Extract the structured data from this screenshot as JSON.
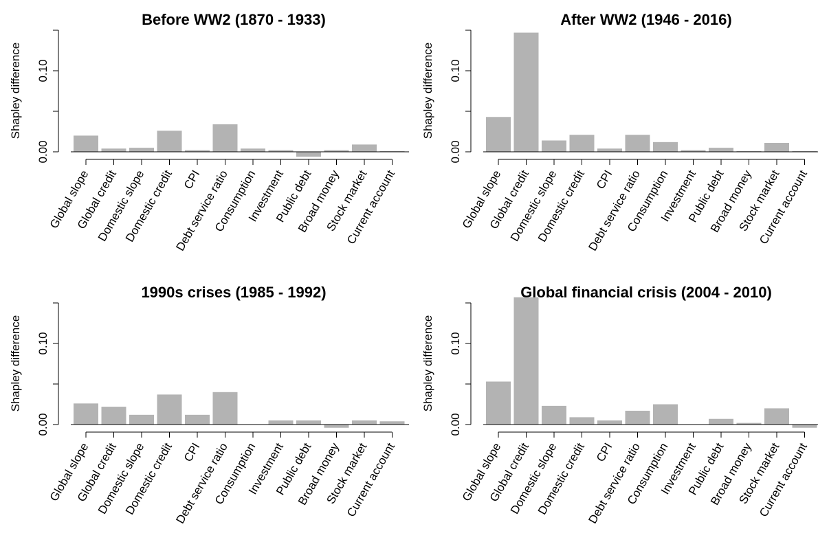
{
  "chart_data": [
    {
      "type": "bar",
      "title": "Before WW2 (1870 - 1933)",
      "y_label": "Shapley difference",
      "color": "#b3b3b3",
      "categories": [
        "Global slope",
        "Global credit",
        "Domestic slope",
        "Domestic credit",
        "CPI",
        "Debt service ratio",
        "Consumption",
        "Investment",
        "Public debt",
        "Broad money",
        "Stock market",
        "Current account"
      ],
      "values": [
        0.02,
        0.004,
        0.005,
        0.026,
        0.002,
        0.034,
        0.004,
        0.002,
        -0.006,
        0.002,
        0.009,
        0.001
      ],
      "ylim": [
        0,
        0.15
      ],
      "yticks": [
        {
          "value": 0,
          "label": "0.00"
        },
        {
          "value": 0.1,
          "label": "0.10"
        }
      ],
      "minor_yticks": [
        0.05,
        0.15
      ]
    },
    {
      "type": "bar",
      "title": "After WW2 (1946 - 2016)",
      "y_label": "Shapley difference",
      "color": "#b3b3b3",
      "categories": [
        "Global slope",
        "Global credit",
        "Domestic slope",
        "Domestic credit",
        "CPI",
        "Debt service ratio",
        "Consumption",
        "Investment",
        "Public debt",
        "Broad money",
        "Stock market",
        "Current account"
      ],
      "values": [
        0.043,
        0.147,
        0.014,
        0.021,
        0.004,
        0.021,
        0.012,
        0.002,
        0.005,
        0.001,
        0.011,
        0.001
      ],
      "ylim": [
        0,
        0.15
      ],
      "yticks": [
        {
          "value": 0,
          "label": "0.00"
        },
        {
          "value": 0.1,
          "label": "0.10"
        }
      ],
      "minor_yticks": [
        0.05,
        0.15
      ]
    },
    {
      "type": "bar",
      "title": "1990s crises (1985 - 1992)",
      "y_label": "Shapley difference",
      "color": "#b3b3b3",
      "categories": [
        "Global slope",
        "Global credit",
        "Domestic slope",
        "Domestic credit",
        "CPI",
        "Debt service ratio",
        "Consumption",
        "Investment",
        "Public debt",
        "Broad money",
        "Stock market",
        "Current account"
      ],
      "values": [
        0.026,
        0.022,
        0.012,
        0.037,
        0.012,
        0.04,
        0.0,
        0.005,
        0.005,
        -0.004,
        0.005,
        0.004
      ],
      "ylim": [
        0,
        0.15
      ],
      "yticks": [
        {
          "value": 0,
          "label": "0.00"
        },
        {
          "value": 0.1,
          "label": "0.10"
        }
      ],
      "minor_yticks": [
        0.05,
        0.15
      ]
    },
    {
      "type": "bar",
      "title": "Global financial crisis (2004 - 2010)",
      "y_label": "Shapley difference",
      "color": "#b3b3b3",
      "categories": [
        "Global slope",
        "Global credit",
        "Domestic slope",
        "Domestic credit",
        "CPI",
        "Debt service ratio",
        "Consumption",
        "Investment",
        "Public debt",
        "Broad money",
        "Stock market",
        "Current account"
      ],
      "values": [
        0.053,
        0.157,
        0.023,
        0.009,
        0.005,
        0.017,
        0.025,
        0.0,
        0.007,
        0.002,
        0.02,
        -0.004
      ],
      "ylim": [
        0,
        0.15
      ],
      "yticks": [
        {
          "value": 0,
          "label": "0.00"
        },
        {
          "value": 0.1,
          "label": "0.10"
        }
      ],
      "minor_yticks": [
        0.05,
        0.15
      ]
    }
  ]
}
